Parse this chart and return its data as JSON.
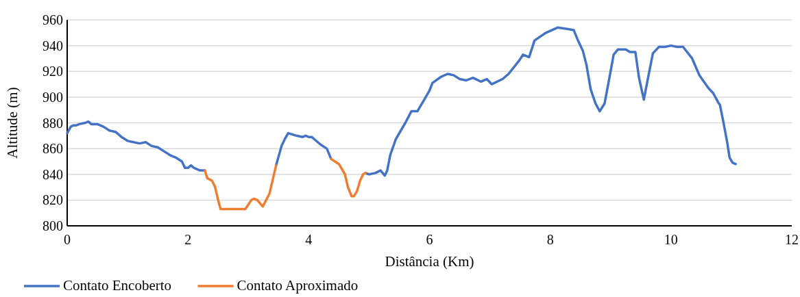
{
  "chart_data": {
    "type": "line",
    "xlabel": "Distância (Km)",
    "ylabel": "Altitude (m)",
    "xlim": [
      0,
      12
    ],
    "xticks": [
      0,
      2,
      4,
      6,
      8,
      10,
      12
    ],
    "ylim": [
      800,
      960
    ],
    "yticks": [
      800,
      820,
      840,
      860,
      880,
      900,
      920,
      940,
      960
    ],
    "grid": "y",
    "legend": "bottom left",
    "line_style": "solid",
    "marker": "none",
    "series": [
      {
        "name": "Contato Encoberto",
        "color": "#4472c4",
        "x": [
          0,
          0.06,
          0.1,
          0.15,
          0.2,
          0.3,
          0.35,
          0.4,
          0.5,
          0.6,
          0.7,
          0.8,
          0.9,
          1.0,
          1.1,
          1.2,
          1.3,
          1.4,
          1.5,
          1.6,
          1.7,
          1.8,
          1.9,
          1.95,
          2.0,
          2.05,
          2.1,
          2.2,
          2.28,
          2.3,
          3.46,
          3.55,
          3.6,
          3.66,
          3.8,
          3.9,
          3.95,
          4.0,
          4.05,
          4.1,
          4.2,
          4.3,
          4.37,
          4.6,
          4.94,
          5.0,
          5.1,
          5.19,
          5.26,
          5.3,
          5.35,
          5.44,
          5.5,
          5.6,
          5.7,
          5.8,
          5.9,
          6.0,
          6.05,
          6.2,
          6.3,
          6.4,
          6.5,
          6.61,
          6.72,
          6.85,
          6.95,
          7.03,
          7.21,
          7.31,
          7.48,
          7.55,
          7.65,
          7.74,
          7.93,
          8.12,
          8.28,
          8.39,
          8.45,
          8.54,
          8.6,
          8.67,
          8.75,
          8.82,
          8.9,
          8.98,
          9.05,
          9.12,
          9.25,
          9.32,
          9.41,
          9.47,
          9.55,
          9.62,
          9.7,
          9.8,
          9.9,
          10.0,
          10.1,
          10.2,
          10.35,
          10.47,
          10.62,
          10.7,
          10.78,
          10.81,
          10.87,
          10.93,
          10.97,
          11.02,
          11.07
        ],
        "values": [
          872,
          877,
          878,
          878,
          879,
          880,
          881,
          879,
          879,
          877,
          874,
          873,
          869,
          866,
          865,
          864,
          865,
          862,
          861,
          858,
          855,
          853,
          850,
          845,
          845,
          847,
          845,
          843,
          843,
          null,
          847,
          862,
          867,
          872,
          870,
          869,
          870,
          869,
          869,
          867,
          863,
          860,
          852,
          null,
          841,
          840,
          841,
          843,
          839,
          843,
          855,
          867,
          872,
          880,
          889,
          889,
          897,
          905,
          911,
          916,
          918,
          917,
          914,
          913,
          915,
          912,
          914,
          910,
          914,
          918,
          928,
          933,
          931,
          944,
          950,
          954,
          953,
          952,
          945,
          936,
          925,
          906,
          895,
          889,
          895,
          915,
          933,
          937,
          937,
          935,
          935,
          915,
          898,
          915,
          934,
          939,
          939,
          940,
          939,
          939,
          930,
          917,
          907,
          903,
          896,
          894,
          880,
          865,
          853,
          849,
          848
        ]
      },
      {
        "name": "Contato Aproximado",
        "color": "#ed7d31",
        "x": [
          2.28,
          2.32,
          2.4,
          2.45,
          2.5,
          2.54,
          2.7,
          2.9,
          2.95,
          3.05,
          3.09,
          3.15,
          3.24,
          3.35,
          3.46,
          3.5,
          4.37,
          4.5,
          4.6,
          4.65,
          4.71,
          4.75,
          4.8,
          4.85,
          4.9,
          4.94
        ],
        "values": [
          843,
          837,
          835,
          830,
          820,
          813,
          813,
          813,
          813,
          820,
          821,
          820,
          815,
          825,
          847,
          null,
          852,
          848,
          840,
          830,
          823,
          823,
          827,
          835,
          840,
          841
        ]
      }
    ]
  }
}
